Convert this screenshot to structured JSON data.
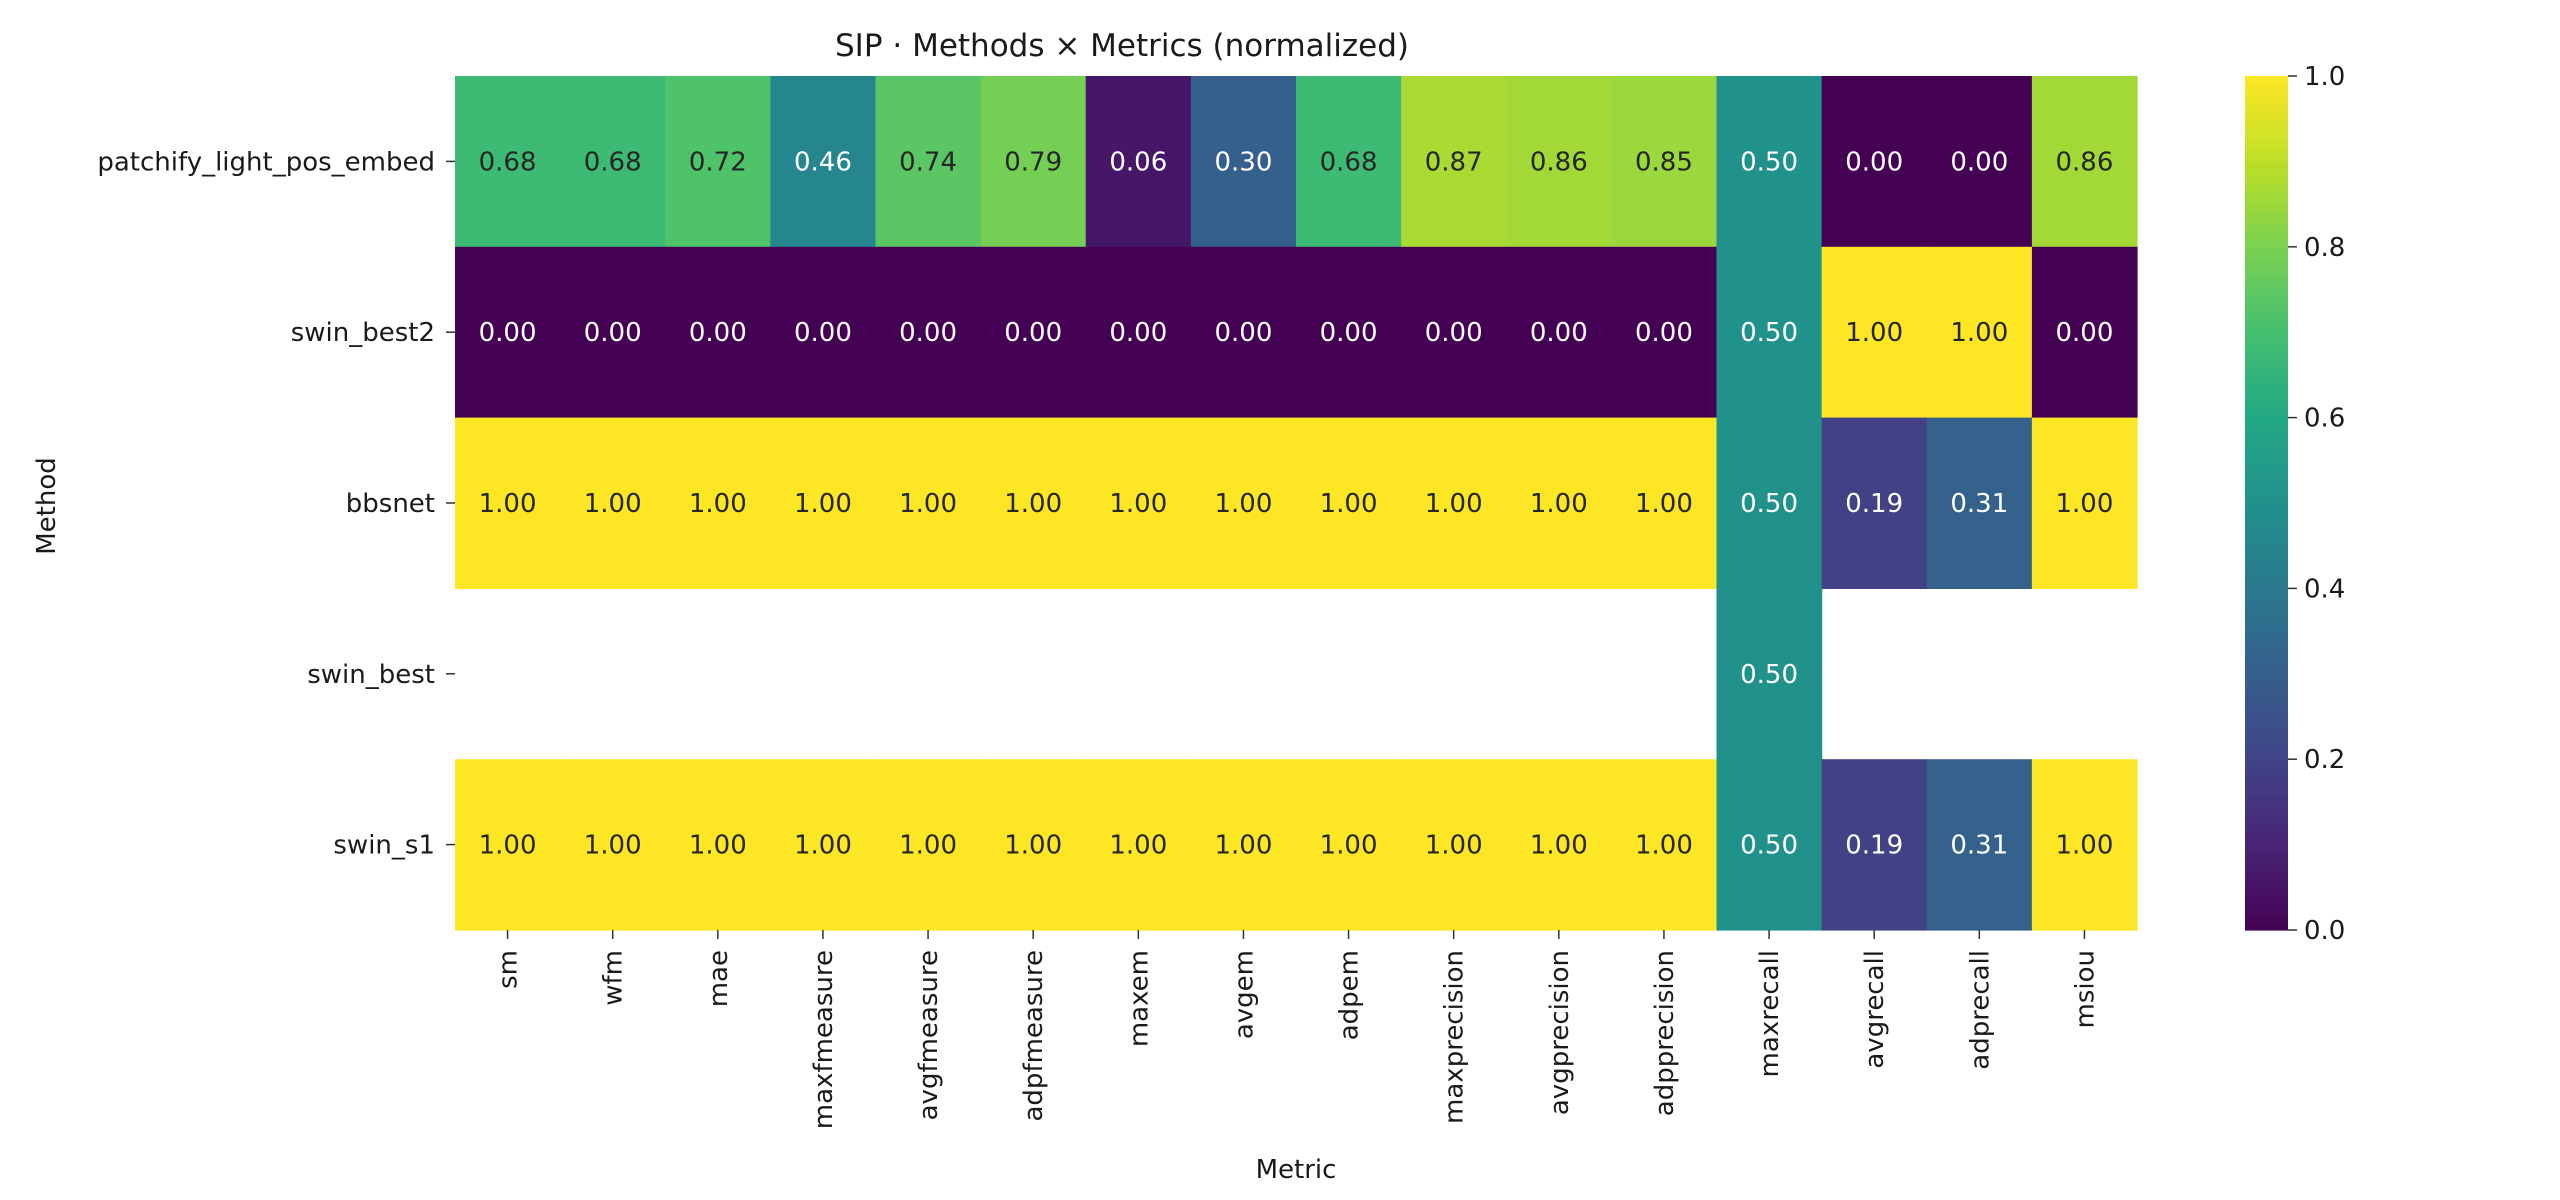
{
  "chart_data": {
    "type": "heatmap",
    "title": "SIP · Methods × Metrics (normalized)",
    "xlabel": "Metric",
    "ylabel": "Method",
    "colormap": "viridis",
    "color_range": [
      0,
      1
    ],
    "colorbar_ticks": [
      "0.0",
      "0.2",
      "0.4",
      "0.6",
      "0.8",
      "1.0"
    ],
    "columns": [
      "sm",
      "wfm",
      "mae",
      "maxfmeasure",
      "avgfmeasure",
      "adpfmeasure",
      "maxem",
      "avgem",
      "adpem",
      "maxprecision",
      "avgprecision",
      "adpprecision",
      "maxrecall",
      "avgrecall",
      "adprecall",
      "msiou"
    ],
    "rows": [
      {
        "name": "patchify_light_pos_embed",
        "values": [
          0.68,
          0.68,
          0.72,
          0.46,
          0.74,
          0.79,
          0.06,
          0.3,
          0.68,
          0.87,
          0.86,
          0.85,
          0.5,
          0.0,
          0.0,
          0.86
        ]
      },
      {
        "name": "swin_best2",
        "values": [
          0.0,
          0.0,
          0.0,
          0.0,
          0.0,
          0.0,
          0.0,
          0.0,
          0.0,
          0.0,
          0.0,
          0.0,
          0.5,
          1.0,
          1.0,
          0.0
        ]
      },
      {
        "name": "bbsnet",
        "values": [
          1.0,
          1.0,
          1.0,
          1.0,
          1.0,
          1.0,
          1.0,
          1.0,
          1.0,
          1.0,
          1.0,
          1.0,
          0.5,
          0.19,
          0.31,
          1.0
        ]
      },
      {
        "name": "swin_best",
        "values": [
          null,
          null,
          null,
          null,
          null,
          null,
          null,
          null,
          null,
          null,
          null,
          null,
          0.5,
          null,
          null,
          null
        ]
      },
      {
        "name": "swin_s1",
        "values": [
          1.0,
          1.0,
          1.0,
          1.0,
          1.0,
          1.0,
          1.0,
          1.0,
          1.0,
          1.0,
          1.0,
          1.0,
          0.5,
          0.19,
          0.31,
          1.0
        ]
      }
    ]
  }
}
